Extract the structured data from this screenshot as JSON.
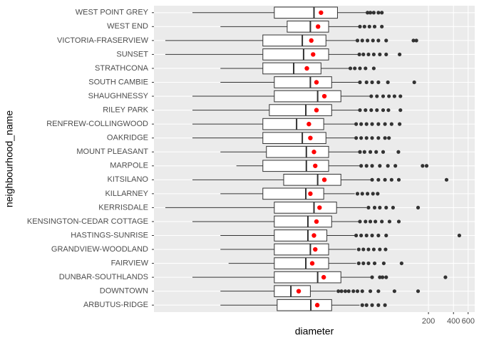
{
  "chart_data": {
    "type": "boxplot",
    "orientation": "horizontal",
    "x_label": "diameter",
    "y_label": "neighbourhood_name",
    "xscale": "log",
    "xlim": [
      0.1,
      720
    ],
    "xticks": [
      200,
      400,
      600
    ],
    "grid": true,
    "box_color": "#333333",
    "box_fill": "#ffffff",
    "mean_color": "#ff0000",
    "outlier_color": "#333333",
    "categories": [
      "ARBUTUS-RIDGE",
      "DOWNTOWN",
      "DUNBAR-SOUTHLANDS",
      "FAIRVIEW",
      "GRANDVIEW-WOODLAND",
      "HASTINGS-SUNRISE",
      "KENSINGTON-CEDAR COTTAGE",
      "KERRISDALE",
      "KILLARNEY",
      "KITSILANO",
      "MARPOLE",
      "MOUNT PLEASANT",
      "OAKRIDGE",
      "RENFREW-COLLINGWOOD",
      "RILEY PARK",
      "SHAUGHNESSY",
      "SOUTH CAMBIE",
      "STRATHCONA",
      "SUNSET",
      "VICTORIA-FRASERVIEW",
      "WEST END",
      "WEST POINT GREY"
    ],
    "boxes": [
      {
        "low": 0.63,
        "q1": 3.03,
        "median": 7.7,
        "q3": 13.7,
        "high": 29.7,
        "mean": 9.2,
        "outliers": [
          32,
          36,
          42,
          50,
          60
        ]
      },
      {
        "low": 0.63,
        "q1": 2.8,
        "median": 4.43,
        "q3": 7.6,
        "high": 15.5,
        "mean": 5.5,
        "outliers": [
          16.5,
          18,
          20,
          22,
          25,
          28,
          32,
          40,
          50,
          78,
          150
        ]
      },
      {
        "low": 0.29,
        "q1": 2.8,
        "median": 9.3,
        "q3": 17.7,
        "high": 40,
        "mean": 11,
        "outliers": [
          42,
          52,
          56,
          62,
          320
        ]
      },
      {
        "low": 0.79,
        "q1": 2.8,
        "median": 6.7,
        "q3": 12.6,
        "high": 27,
        "mean": 8,
        "outliers": [
          29,
          33,
          38,
          45,
          58,
          95
        ]
      },
      {
        "low": 0.63,
        "q1": 2.8,
        "median": 7.6,
        "q3": 12.6,
        "high": 27,
        "mean": 8.7,
        "outliers": [
          29,
          33,
          38,
          44,
          52,
          61
        ]
      },
      {
        "low": 0.63,
        "q1": 2.8,
        "median": 7.1,
        "q3": 12,
        "high": 26,
        "mean": 8.4,
        "outliers": [
          27,
          31,
          36,
          42,
          50,
          62,
          470
        ]
      },
      {
        "low": 0.29,
        "q1": 2.8,
        "median": 7.1,
        "q3": 13.7,
        "high": 29,
        "mean": 9,
        "outliers": [
          30,
          35,
          40,
          46,
          55,
          68,
          88
        ]
      },
      {
        "low": 0.137,
        "q1": 2.8,
        "median": 8.4,
        "q3": 15.7,
        "high": 36,
        "mean": 9.8,
        "outliers": [
          38,
          45,
          52,
          62,
          75,
          150
        ]
      },
      {
        "low": 0.63,
        "q1": 2.04,
        "median": 6.7,
        "q3": 11,
        "high": 26,
        "mean": 7.6,
        "outliers": [
          28,
          32,
          37,
          43,
          49
        ]
      },
      {
        "low": 0.29,
        "q1": 3.63,
        "median": 9.3,
        "q3": 17.7,
        "high": 40,
        "mean": 11.2,
        "outliers": [
          42,
          50,
          60,
          72,
          88,
          330
        ]
      },
      {
        "low": 0.98,
        "q1": 2.04,
        "median": 6.8,
        "q3": 12.6,
        "high": 29.7,
        "mean": 8.7,
        "outliers": [
          31,
          36,
          42,
          52,
          65,
          80,
          170,
          190
        ]
      },
      {
        "low": 0.63,
        "q1": 2.25,
        "median": 6.8,
        "q3": 12.6,
        "high": 29,
        "mean": 8.4,
        "outliers": [
          30,
          34,
          40,
          47,
          57,
          87
        ]
      },
      {
        "low": 0.29,
        "q1": 2.04,
        "median": 6.08,
        "q3": 11.7,
        "high": 26,
        "mean": 7.6,
        "outliers": [
          27,
          31,
          36,
          42,
          50,
          60,
          67
        ]
      },
      {
        "low": 0.29,
        "q1": 2.04,
        "median": 5.19,
        "q3": 11,
        "high": 26,
        "mean": 7.3,
        "outliers": [
          27,
          31,
          36,
          42,
          50,
          60,
          72,
          90
        ]
      },
      {
        "low": 0.29,
        "q1": 2.44,
        "median": 6.7,
        "q3": 13.7,
        "high": 29.7,
        "mean": 9,
        "outliers": [
          30,
          35,
          41,
          48,
          57,
          66,
          92
        ]
      },
      {
        "low": 0.29,
        "q1": 2.8,
        "median": 9.3,
        "q3": 17.7,
        "high": 40,
        "mean": 11.2,
        "outliers": [
          41,
          48,
          57,
          67,
          78,
          92
        ]
      },
      {
        "low": 0.63,
        "q1": 2.8,
        "median": 7.6,
        "q3": 13.7,
        "high": 29,
        "mean": 9,
        "outliers": [
          30,
          36,
          42,
          50,
          65,
          135
        ]
      },
      {
        "low": 0.63,
        "q1": 2.04,
        "median": 4.79,
        "q3": 10.2,
        "high": 22,
        "mean": 6.9,
        "outliers": [
          23,
          26,
          30,
          35,
          44
        ]
      },
      {
        "low": 0.137,
        "q1": 2.04,
        "median": 6.3,
        "q3": 12.6,
        "high": 29,
        "mean": 8.2,
        "outliers": [
          29.5,
          33,
          38,
          44,
          52,
          62,
          90
        ]
      },
      {
        "low": 0.137,
        "q1": 2.04,
        "median": 6.08,
        "q3": 11.7,
        "high": 27,
        "mean": 7.8,
        "outliers": [
          28,
          32,
          37,
          43,
          50,
          62,
          132,
          143
        ]
      },
      {
        "low": 0.63,
        "q1": 4,
        "median": 7.6,
        "q3": 12.6,
        "high": 29,
        "mean": 9.4,
        "outliers": [
          30,
          34,
          39,
          45,
          55
        ]
      },
      {
        "low": 0.29,
        "q1": 2.8,
        "median": 8.4,
        "q3": 16.1,
        "high": 36,
        "mean": 10.2,
        "outliers": [
          37,
          40,
          44,
          50,
          55
        ]
      }
    ]
  }
}
